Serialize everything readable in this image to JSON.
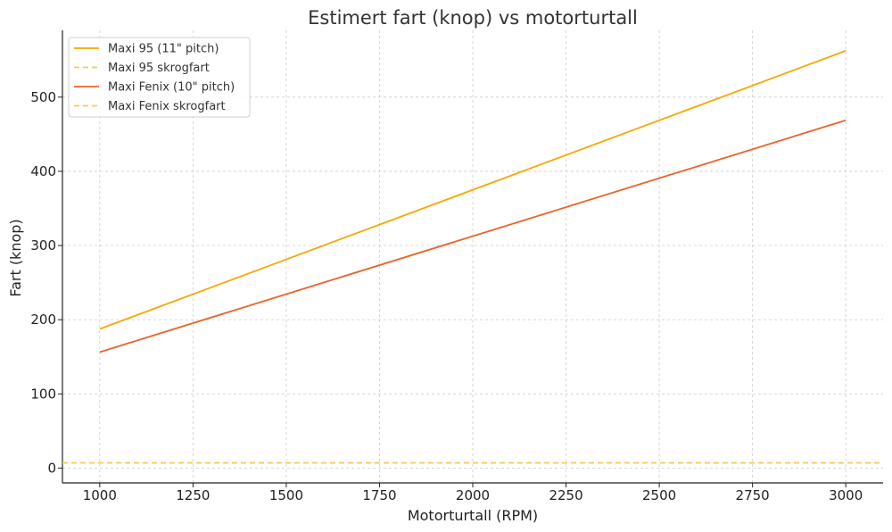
{
  "chart_data": {
    "type": "line",
    "title": "Estimert fart (knop) vs motorturtall",
    "xlabel": "Motorturtall (RPM)",
    "ylabel": "Fart (knop)",
    "xlim": [
      900,
      3100
    ],
    "ylim": [
      -20,
      590
    ],
    "xticks": [
      1000,
      1250,
      1500,
      1750,
      2000,
      2250,
      2500,
      2750,
      3000
    ],
    "yticks": [
      0,
      100,
      200,
      300,
      400,
      500
    ],
    "grid": true,
    "legend_position": "top-left",
    "series": [
      {
        "name": "Maxi 95 (11\" pitch)",
        "style": "solid",
        "color": "#F5A800",
        "x": [
          1000,
          3000
        ],
        "y": [
          187.5,
          562.5
        ]
      },
      {
        "name": "Maxi 95 skrogfart",
        "style": "dashed",
        "color": "#F7C95A",
        "horizontal": true,
        "y": 7
      },
      {
        "name": "Maxi Fenix (10\" pitch)",
        "style": "solid",
        "color": "#E8642A",
        "x": [
          1000,
          3000
        ],
        "y": [
          156.3,
          468.8
        ]
      },
      {
        "name": "Maxi Fenix skrogfart",
        "style": "dashed",
        "color": "#F7C95A",
        "horizontal": true,
        "y": 7
      }
    ]
  }
}
